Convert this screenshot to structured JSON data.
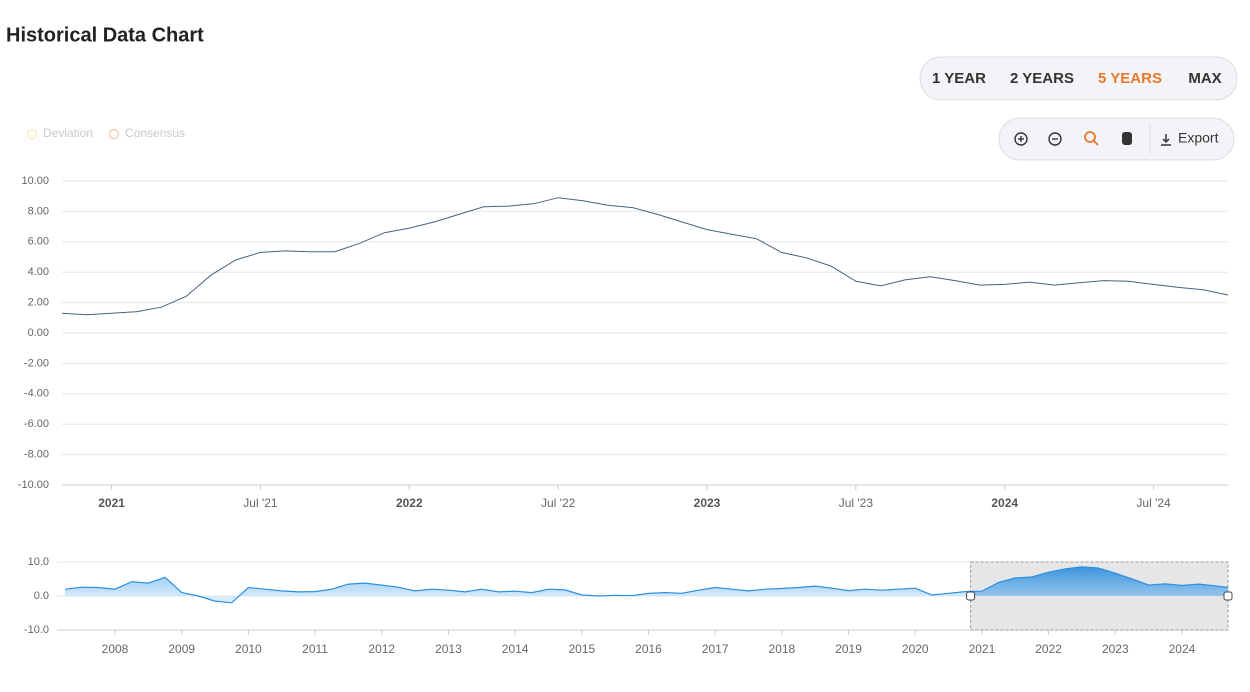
{
  "header": {
    "title": "Historical Data Chart"
  },
  "range_buttons": {
    "items": [
      "1 YEAR",
      "2 YEARS",
      "5 YEARS",
      "MAX"
    ],
    "active": 2,
    "color": "#333333",
    "active_color": "#e8792b"
  },
  "toolbar": {
    "export": "Export"
  },
  "legend_items": [
    {
      "name": "Deviation",
      "color": "#f5d08a"
    },
    {
      "name": "Consensus",
      "color": "#f0a070"
    }
  ],
  "chart_data": [
    {
      "type": "line",
      "color": "#4a6080",
      "grid": true,
      "x": [
        "2020-11",
        "2020-12",
        "2021-01",
        "2021-02",
        "2021-03",
        "2021-04",
        "2021-05",
        "2021-06",
        "2021-07",
        "2021-08",
        "2021-09",
        "2021-10",
        "2021-11",
        "2021-12",
        "2022-01",
        "2022-02",
        "2022-03",
        "2022-04",
        "2022-05",
        "2022-06",
        "2022-07",
        "2022-08",
        "2022-09",
        "2022-10",
        "2022-11",
        "2022-12",
        "2023-01",
        "2023-02",
        "2023-03",
        "2023-04",
        "2023-05",
        "2023-06",
        "2023-07",
        "2023-08",
        "2023-09",
        "2023-10",
        "2023-11",
        "2023-12",
        "2024-01",
        "2024-02",
        "2024-03",
        "2024-04",
        "2024-05",
        "2024-06",
        "2024-07",
        "2024-08",
        "2024-09",
        "2024-10"
      ],
      "values": [
        1.3,
        1.2,
        1.3,
        1.4,
        1.7,
        2.4,
        3.8,
        4.8,
        5.3,
        5.4,
        5.35,
        5.35,
        5.9,
        6.6,
        6.9,
        7.3,
        7.8,
        8.3,
        8.35,
        8.5,
        8.9,
        8.7,
        8.4,
        8.25,
        7.8,
        7.3,
        6.8,
        6.5,
        6.2,
        5.3,
        4.95,
        4.4,
        3.4,
        3.1,
        3.5,
        3.7,
        3.45,
        3.15,
        3.2,
        3.35,
        3.15,
        3.3,
        3.45,
        3.4,
        3.2,
        3.0,
        2.85,
        2.5
      ],
      "xlim": [
        "2020-11",
        "2024-10"
      ],
      "xticks": [
        {
          "value": "2021-01",
          "label": "2021"
        },
        {
          "value": "2021-07",
          "label": "Jul '21"
        },
        {
          "value": "2022-01",
          "label": "2022"
        },
        {
          "value": "2022-07",
          "label": "Jul '22"
        },
        {
          "value": "2023-01",
          "label": "2023"
        },
        {
          "value": "2023-07",
          "label": "Jul '23"
        },
        {
          "value": "2024-01",
          "label": "2024"
        },
        {
          "value": "2024-07",
          "label": "Jul '24"
        }
      ],
      "ylim": [
        -10,
        10
      ],
      "yticks": [
        {
          "value": 10,
          "label": "10.00"
        },
        {
          "value": 8,
          "label": "8.00"
        },
        {
          "value": 6,
          "label": "6.00"
        },
        {
          "value": 4,
          "label": "4.00"
        },
        {
          "value": 2,
          "label": "2.00"
        },
        {
          "value": 0,
          "label": "0.00"
        },
        {
          "value": -2,
          "label": "-2.00"
        },
        {
          "value": -4,
          "label": "-4.00"
        },
        {
          "value": -6,
          "label": "-6.00"
        },
        {
          "value": -8,
          "label": "-8.00"
        },
        {
          "value": -10,
          "label": "-10.00"
        }
      ]
    },
    {
      "type": "area",
      "color": "#2a8fe0",
      "grid": true,
      "x": [
        2007.25,
        2007.5,
        2007.75,
        2008.0,
        2008.25,
        2008.5,
        2008.75,
        2009.0,
        2009.25,
        2009.5,
        2009.75,
        2010.0,
        2010.25,
        2010.5,
        2010.75,
        2011.0,
        2011.25,
        2011.5,
        2011.75,
        2012.0,
        2012.25,
        2012.5,
        2012.75,
        2013.0,
        2013.25,
        2013.5,
        2013.75,
        2014.0,
        2014.25,
        2014.5,
        2014.75,
        2015.0,
        2015.25,
        2015.5,
        2015.75,
        2016.0,
        2016.25,
        2016.5,
        2016.75,
        2017.0,
        2017.25,
        2017.5,
        2017.75,
        2018.0,
        2018.25,
        2018.5,
        2018.75,
        2019.0,
        2019.25,
        2019.5,
        2019.75,
        2020.0,
        2020.25,
        2020.5,
        2020.75,
        2021.0,
        2021.25,
        2021.5,
        2021.75,
        2022.0,
        2022.25,
        2022.5,
        2022.75,
        2023.0,
        2023.25,
        2023.5,
        2023.75,
        2024.0,
        2024.25,
        2024.5,
        2024.69
      ],
      "values": [
        2.0,
        2.6,
        2.5,
        2.0,
        4.2,
        3.8,
        5.5,
        1.0,
        0,
        -1.5,
        -2.0,
        2.5,
        2.0,
        1.5,
        1.2,
        1.3,
        2.0,
        3.5,
        3.8,
        3.2,
        2.6,
        1.5,
        2.0,
        1.7,
        1.2,
        2.0,
        1.2,
        1.4,
        1.0,
        2.0,
        1.8,
        0.3,
        0,
        0.2,
        0.1,
        0.8,
        1.0,
        0.8,
        1.7,
        2.5,
        2.0,
        1.5,
        2.0,
        2.2,
        2.5,
        2.9,
        2.3,
        1.6,
        2.0,
        1.7,
        2.0,
        2.3,
        0.3,
        0.8,
        1.3,
        1.4,
        4.0,
        5.3,
        5.6,
        7.0,
        8.0,
        8.6,
        8.2,
        6.7,
        5.0,
        3.2,
        3.6,
        3.1,
        3.5,
        3.0,
        2.5
      ],
      "xlim": [
        2007.13,
        2024.69
      ],
      "xticks": [
        2008,
        2009,
        2010,
        2011,
        2012,
        2013,
        2014,
        2015,
        2016,
        2017,
        2018,
        2019,
        2020,
        2021,
        2022,
        2023,
        2024
      ],
      "ylim": [
        -10,
        10
      ],
      "yticks": [
        {
          "value": 10,
          "label": "10.0"
        },
        {
          "value": 0,
          "label": "0.0"
        },
        {
          "value": -10,
          "label": "-10.0"
        }
      ],
      "selection": [
        2020.83,
        2024.69
      ]
    }
  ]
}
